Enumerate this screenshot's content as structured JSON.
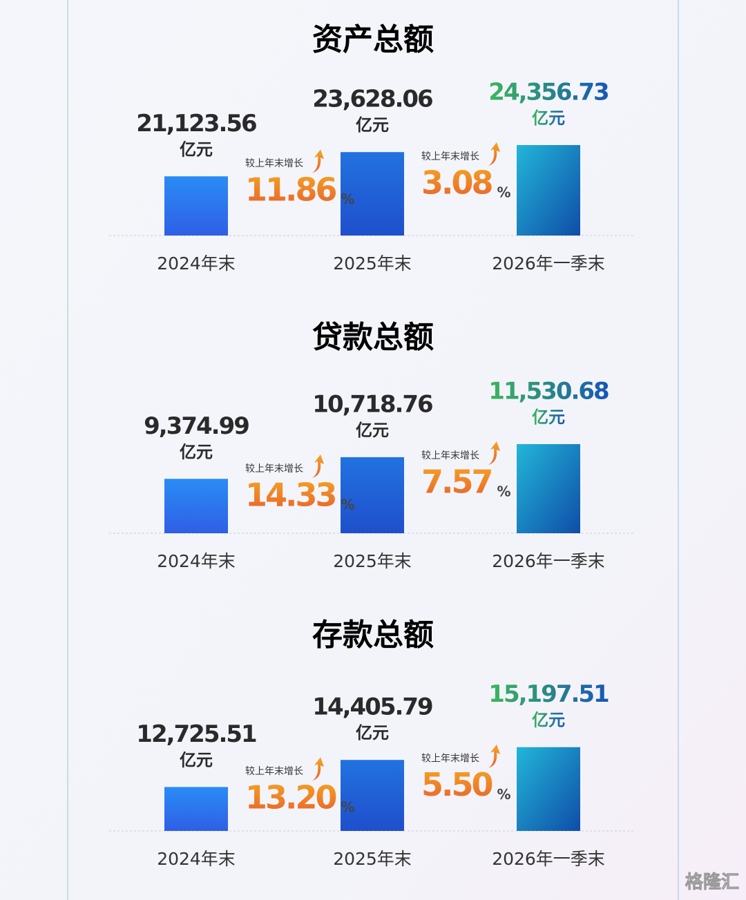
{
  "chart_data": [
    {
      "type": "bar",
      "title": "资产总额",
      "categories": [
        "2024年末",
        "2025年末",
        "2026年一季末"
      ],
      "values": [
        21123.56,
        23628.06,
        24356.73
      ],
      "value_labels": [
        "21,123.56",
        "23,628.06",
        "24,356.73"
      ],
      "unit": "亿元",
      "color": "#1f6fe0",
      "ylim": [
        15000,
        25000
      ],
      "growth": {
        "label": "较上年末增长",
        "values": [
          11.86,
          3.08
        ],
        "value_labels": [
          "11.86",
          "3.08"
        ],
        "unit": "%"
      }
    },
    {
      "type": "bar",
      "title": "贷款总额",
      "categories": [
        "2024年末",
        "2025年末",
        "2026年一季末"
      ],
      "values": [
        9374.99,
        10718.76,
        11530.68
      ],
      "value_labels": [
        "9,374.99",
        "10,718.76",
        "11,530.68"
      ],
      "unit": "亿元",
      "color": "#1f6fe0",
      "ylim": [
        6000,
        12000
      ],
      "growth": {
        "label": "较上年末增长",
        "values": [
          14.33,
          7.57
        ],
        "value_labels": [
          "14.33",
          "7.57"
        ],
        "unit": "%"
      }
    },
    {
      "type": "bar",
      "title": "存款总额",
      "categories": [
        "2024年末",
        "2025年末",
        "2026年一季末"
      ],
      "values": [
        12725.51,
        14405.79,
        15197.51
      ],
      "value_labels": [
        "12,725.51",
        "14,405.79",
        "15,197.51"
      ],
      "unit": "亿元",
      "color": "#1f6fe0",
      "ylim": [
        10000,
        16000
      ],
      "growth": {
        "label": "较上年末增长",
        "values": [
          13.2,
          5.5
        ],
        "value_labels": [
          "13.20",
          "5.50"
        ],
        "unit": "%"
      }
    }
  ],
  "watermark": "格隆汇"
}
